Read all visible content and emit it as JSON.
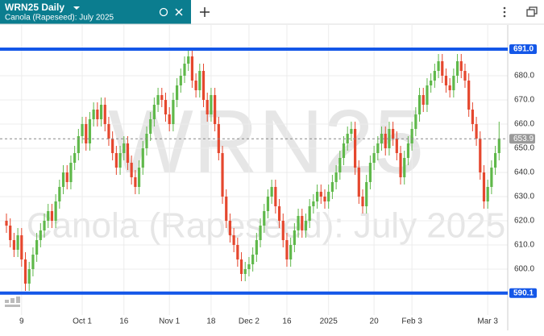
{
  "header": {
    "title": "WRN25 Daily",
    "subtitle": "Canola (Rapeseed): July 2025"
  },
  "chart_data": {
    "type": "candlestick",
    "watermark": "WRN25",
    "categories": [
      null,
      null,
      null,
      null,
      "9",
      null,
      null,
      null,
      null,
      null,
      null,
      null,
      null,
      null,
      null,
      null,
      null,
      null,
      null,
      null,
      "Oct 1",
      null,
      null,
      null,
      null,
      null,
      null,
      null,
      null,
      null,
      null,
      "16",
      null,
      null,
      null,
      null,
      null,
      null,
      null,
      null,
      null,
      null,
      null,
      "Nov 1",
      null,
      null,
      null,
      null,
      null,
      null,
      null,
      null,
      null,
      null,
      "18",
      null,
      null,
      null,
      null,
      null,
      null,
      null,
      null,
      null,
      "Dec 2",
      null,
      null,
      null,
      null,
      null,
      null,
      null,
      null,
      null,
      "16",
      null,
      null,
      null,
      null,
      null,
      null,
      null,
      null,
      null,
      null,
      "2025",
      null,
      null,
      null,
      null,
      null,
      null,
      null,
      null,
      null,
      null,
      null,
      "20",
      null,
      null,
      null,
      null,
      null,
      null,
      null,
      null,
      null,
      "Feb 3",
      null,
      null,
      null,
      null,
      null,
      null,
      null,
      null,
      null,
      null,
      null,
      null,
      null,
      null,
      null,
      null,
      null,
      null,
      null,
      "Mar 3",
      null,
      null,
      null
    ],
    "open": [
      620,
      618,
      612,
      608,
      614,
      604,
      594,
      600,
      606,
      612,
      616,
      620,
      624,
      620,
      628,
      634,
      640,
      636,
      644,
      648,
      655,
      660,
      652,
      662,
      666,
      662,
      668,
      660,
      654,
      648,
      642,
      648,
      652,
      644,
      638,
      634,
      642,
      650,
      656,
      662,
      668,
      672,
      670,
      664,
      660,
      670,
      676,
      680,
      685,
      688,
      678,
      674,
      682,
      670,
      664,
      672,
      660,
      648,
      630,
      620,
      614,
      610,
      604,
      598,
      600,
      602,
      606,
      612,
      618,
      624,
      630,
      634,
      626,
      620,
      612,
      604,
      610,
      616,
      622,
      616,
      620,
      626,
      628,
      632,
      630,
      628,
      632,
      636,
      640,
      646,
      652,
      656,
      658,
      642,
      630,
      626,
      636,
      644,
      648,
      652,
      656,
      650,
      658,
      654,
      648,
      638,
      646,
      652,
      658,
      664,
      672,
      668,
      676,
      678,
      682,
      686,
      680,
      676,
      674,
      680,
      686,
      682,
      678,
      666,
      660,
      654,
      640,
      628,
      634,
      642,
      648
    ],
    "high": [
      623,
      621,
      615,
      617,
      617,
      607,
      603,
      609,
      615,
      619,
      623,
      627,
      627,
      631,
      637,
      643,
      643,
      647,
      651,
      658,
      663,
      663,
      665,
      669,
      669,
      671,
      671,
      663,
      657,
      651,
      651,
      655,
      655,
      647,
      641,
      645,
      653,
      659,
      665,
      671,
      675,
      675,
      673,
      667,
      673,
      679,
      683,
      688,
      691,
      691,
      681,
      685,
      685,
      673,
      675,
      675,
      663,
      651,
      633,
      623,
      617,
      613,
      607,
      603,
      605,
      609,
      615,
      621,
      627,
      633,
      637,
      637,
      629,
      623,
      615,
      613,
      619,
      625,
      625,
      623,
      629,
      631,
      635,
      635,
      633,
      635,
      639,
      643,
      649,
      655,
      659,
      661,
      661,
      645,
      633,
      639,
      647,
      651,
      655,
      659,
      659,
      661,
      661,
      657,
      651,
      649,
      655,
      661,
      667,
      675,
      675,
      679,
      681,
      685,
      689,
      689,
      683,
      679,
      683,
      689,
      689,
      685,
      681,
      669,
      663,
      657,
      643,
      637,
      645,
      651,
      661
    ],
    "low": [
      615,
      609,
      605,
      605,
      601,
      591,
      591,
      597,
      603,
      609,
      613,
      617,
      617,
      617,
      625,
      631,
      633,
      633,
      641,
      645,
      652,
      649,
      649,
      659,
      659,
      659,
      657,
      651,
      645,
      639,
      639,
      645,
      641,
      635,
      631,
      631,
      639,
      647,
      653,
      659,
      665,
      667,
      661,
      657,
      657,
      667,
      673,
      677,
      682,
      675,
      671,
      671,
      667,
      661,
      661,
      657,
      645,
      627,
      617,
      611,
      607,
      601,
      595,
      595,
      597,
      599,
      603,
      609,
      615,
      621,
      627,
      623,
      617,
      609,
      601,
      601,
      607,
      613,
      613,
      613,
      617,
      623,
      625,
      627,
      625,
      625,
      629,
      633,
      637,
      643,
      649,
      653,
      639,
      627,
      623,
      623,
      633,
      641,
      645,
      649,
      647,
      647,
      651,
      645,
      635,
      635,
      643,
      649,
      655,
      661,
      665,
      665,
      673,
      675,
      679,
      677,
      673,
      671,
      671,
      677,
      679,
      675,
      663,
      657,
      651,
      637,
      625,
      625,
      631,
      639,
      645
    ],
    "close": [
      618,
      612,
      608,
      614,
      604,
      594,
      600,
      606,
      612,
      616,
      620,
      624,
      620,
      628,
      634,
      640,
      636,
      644,
      648,
      655,
      660,
      652,
      662,
      666,
      662,
      668,
      660,
      654,
      648,
      642,
      648,
      652,
      644,
      638,
      634,
      642,
      650,
      656,
      662,
      668,
      672,
      670,
      664,
      660,
      670,
      676,
      680,
      685,
      688,
      678,
      674,
      682,
      670,
      664,
      672,
      660,
      648,
      630,
      620,
      614,
      610,
      604,
      598,
      600,
      602,
      606,
      612,
      618,
      624,
      630,
      634,
      626,
      620,
      612,
      604,
      610,
      616,
      622,
      616,
      620,
      626,
      628,
      632,
      630,
      628,
      632,
      636,
      640,
      646,
      652,
      656,
      658,
      642,
      630,
      626,
      636,
      644,
      648,
      652,
      656,
      650,
      658,
      654,
      648,
      638,
      646,
      652,
      658,
      664,
      672,
      668,
      676,
      678,
      682,
      686,
      680,
      676,
      674,
      680,
      686,
      682,
      678,
      666,
      660,
      654,
      640,
      628,
      634,
      642,
      648,
      653.9
    ],
    "up_color": "#5fb84a",
    "down_color": "#e5472e",
    "ylim": [
      581,
      701
    ],
    "yticks": [
      {
        "value": 600,
        "label": "600.0"
      },
      {
        "value": 610,
        "label": "610.0"
      },
      {
        "value": 620,
        "label": "620.0"
      },
      {
        "value": 630,
        "label": "630.0"
      },
      {
        "value": 640,
        "label": "640.0"
      },
      {
        "value": 650,
        "label": "650.0"
      },
      {
        "value": 660,
        "label": "660.0"
      },
      {
        "value": 670,
        "label": "670.0"
      },
      {
        "value": 680,
        "label": "680.0"
      }
    ],
    "grid": true,
    "hlines": [
      {
        "value": 691,
        "label": "691.0"
      },
      {
        "value": 590.1,
        "label": "590.1"
      }
    ],
    "hline_color": "#1457e8",
    "last_price": {
      "value": 653.9,
      "label": "653.9"
    }
  }
}
